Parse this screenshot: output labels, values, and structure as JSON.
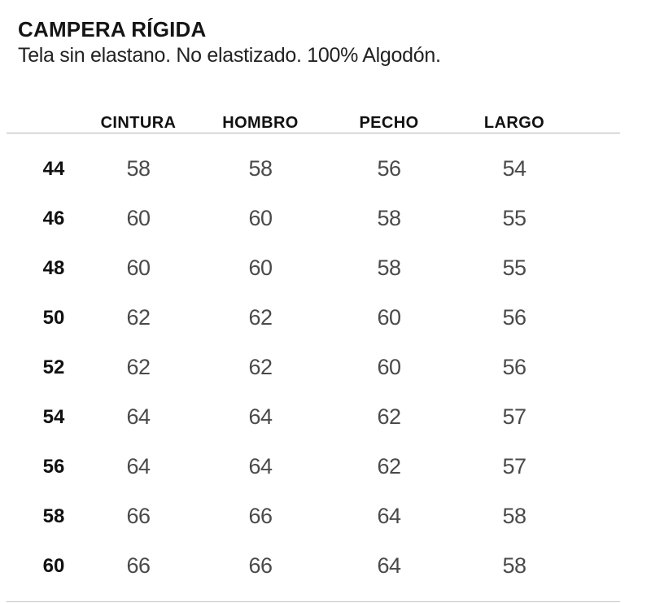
{
  "header": {
    "title": "CAMPERA RÍGIDA",
    "subtitle": "Tela sin elastano. No elastizado. 100% Algodón."
  },
  "chart_data": {
    "type": "table",
    "title": "CAMPERA RÍGIDA",
    "subtitle": "Tela sin elastano. No elastizado. 100% Algodón.",
    "size_column_header": "",
    "columns": [
      "CINTURA",
      "HOMBRO",
      "PECHO",
      "LARGO"
    ],
    "rows": [
      {
        "size": "44",
        "values": [
          "58",
          "58",
          "56",
          "54"
        ]
      },
      {
        "size": "46",
        "values": [
          "60",
          "60",
          "58",
          "55"
        ]
      },
      {
        "size": "48",
        "values": [
          "60",
          "60",
          "58",
          "55"
        ]
      },
      {
        "size": "50",
        "values": [
          "62",
          "62",
          "60",
          "56"
        ]
      },
      {
        "size": "52",
        "values": [
          "62",
          "62",
          "60",
          "56"
        ]
      },
      {
        "size": "54",
        "values": [
          "64",
          "64",
          "62",
          "57"
        ]
      },
      {
        "size": "56",
        "values": [
          "64",
          "64",
          "62",
          "57"
        ]
      },
      {
        "size": "58",
        "values": [
          "66",
          "66",
          "64",
          "58"
        ]
      },
      {
        "size": "60",
        "values": [
          "66",
          "66",
          "64",
          "58"
        ]
      }
    ],
    "layout": {
      "grid": "off",
      "header_rule": true,
      "bottom_rule": true,
      "legend": "none"
    }
  },
  "colors": {
    "background": "#ffffff",
    "title": "#151515",
    "subtitle": "#222222",
    "column_header": "#111111",
    "size_label": "#111111",
    "cell_value": "#4a4a4a",
    "rule": "#b3b3b3"
  }
}
